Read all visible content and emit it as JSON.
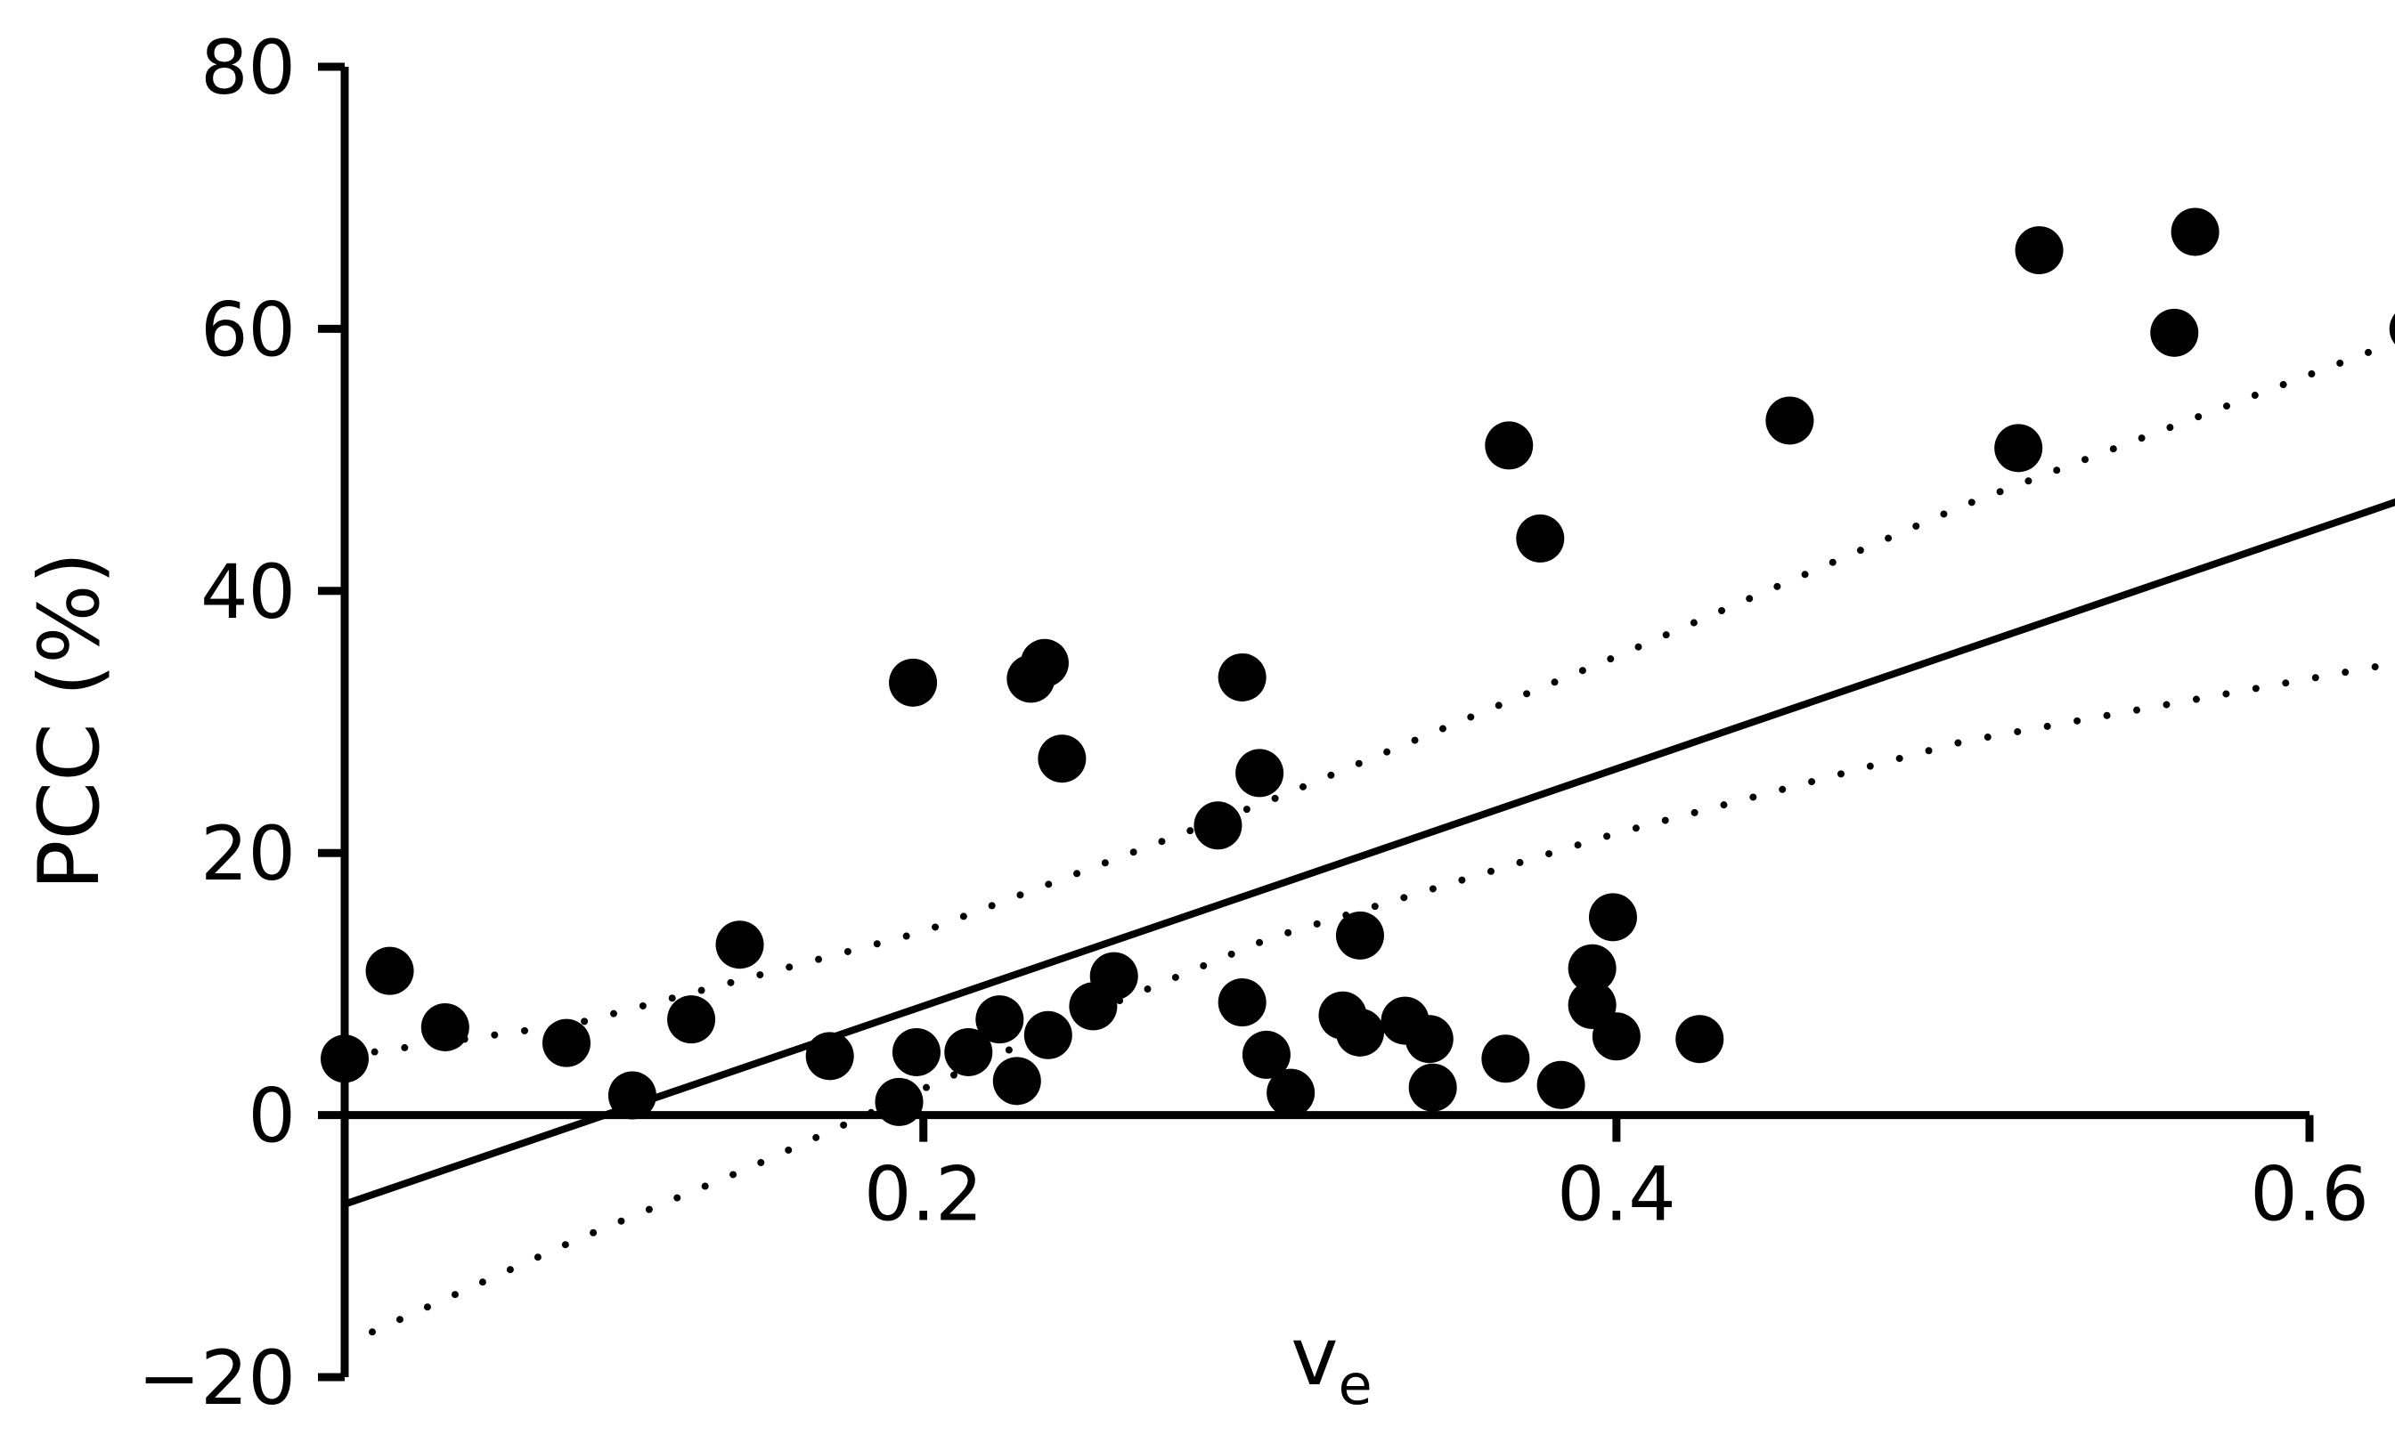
{
  "chart_data": {
    "type": "scatter",
    "title": "",
    "xlabel": "v",
    "xlabel_subscript": "e",
    "ylabel": "PCC (%)",
    "xlim": [
      0.033,
      0.6
    ],
    "ylim": [
      -20,
      80
    ],
    "x_ticks": [
      0.2,
      0.4,
      0.6
    ],
    "x_tick_labels": [
      "0.2",
      "0.4",
      "0.6"
    ],
    "y_ticks": [
      -20,
      0,
      20,
      40,
      60,
      80
    ],
    "y_tick_labels": [
      "−20",
      "0",
      "20",
      "40",
      "60",
      "80"
    ],
    "grid": false,
    "colors": {
      "points": "#000000",
      "lines": "#000000"
    },
    "series": [
      {
        "style": "points",
        "points": [
          [
            0.033,
            4.3
          ],
          [
            0.046,
            11.0
          ],
          [
            0.062,
            6.7
          ],
          [
            0.097,
            5.5
          ],
          [
            0.116,
            1.5
          ],
          [
            0.133,
            7.3
          ],
          [
            0.147,
            13.0
          ],
          [
            0.173,
            4.5
          ],
          [
            0.193,
            1.0
          ],
          [
            0.197,
            33.0
          ],
          [
            0.198,
            4.8
          ],
          [
            0.213,
            4.8
          ],
          [
            0.222,
            7.3
          ],
          [
            0.227,
            2.6
          ],
          [
            0.231,
            33.3
          ],
          [
            0.235,
            34.5
          ],
          [
            0.236,
            6.1
          ],
          [
            0.24,
            27.2
          ],
          [
            0.249,
            8.3
          ],
          [
            0.255,
            10.6
          ],
          [
            0.285,
            22.1
          ],
          [
            0.292,
            33.4
          ],
          [
            0.292,
            8.6
          ],
          [
            0.297,
            26.1
          ],
          [
            0.299,
            4.6
          ],
          [
            0.306,
            1.7
          ],
          [
            0.321,
            7.6
          ],
          [
            0.326,
            13.7
          ],
          [
            0.326,
            6.3
          ],
          [
            0.339,
            7.2
          ],
          [
            0.346,
            5.8
          ],
          [
            0.347,
            2.1
          ],
          [
            0.369,
            51.1
          ],
          [
            0.368,
            4.3
          ],
          [
            0.378,
            44.0
          ],
          [
            0.384,
            2.3
          ],
          [
            0.393,
            11.2
          ],
          [
            0.393,
            8.4
          ],
          [
            0.399,
            15.1
          ],
          [
            0.4,
            6.0
          ],
          [
            0.424,
            5.8
          ],
          [
            0.45,
            53.0
          ],
          [
            0.516,
            50.9
          ],
          [
            0.522,
            66.0
          ],
          [
            0.561,
            59.7
          ],
          [
            0.567,
            67.4
          ],
          [
            0.63,
            60.0
          ]
        ]
      },
      {
        "style": "solid",
        "kind": "regression line",
        "points": [
          [
            0.033,
            -6.8
          ],
          [
            0.625,
            46.8
          ]
        ]
      },
      {
        "style": "dotted",
        "kind": "upper band",
        "points": [
          [
            0.033,
            4.5
          ],
          [
            0.1,
            7.0
          ],
          [
            0.2,
            14.0
          ],
          [
            0.3,
            24.0
          ],
          [
            0.4,
            35.0
          ],
          [
            0.5,
            46.5
          ],
          [
            0.625,
            59.0
          ]
        ]
      },
      {
        "style": "dotted",
        "kind": "lower band",
        "points": [
          [
            0.033,
            -17.5
          ],
          [
            0.1,
            -9.5
          ],
          [
            0.15,
            -4.0
          ],
          [
            0.2,
            2.0
          ],
          [
            0.25,
            8.0
          ],
          [
            0.3,
            13.5
          ],
          [
            0.4,
            21.5
          ],
          [
            0.5,
            28.5
          ],
          [
            0.625,
            34.5
          ]
        ]
      }
    ]
  }
}
